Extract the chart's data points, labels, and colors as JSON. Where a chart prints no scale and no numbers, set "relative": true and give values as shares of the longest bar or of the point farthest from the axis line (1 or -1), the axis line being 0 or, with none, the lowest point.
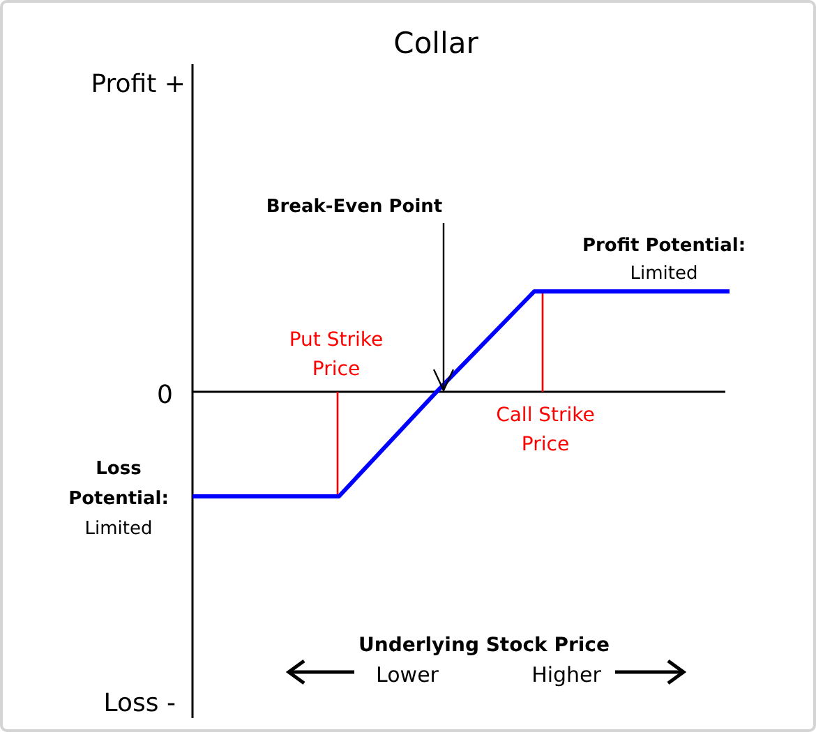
{
  "chart_data": {
    "type": "line",
    "title": "Collar",
    "relative": true,
    "marker": "none",
    "line_style": "solid",
    "categories": [
      null,
      null,
      null,
      null,
      null,
      null,
      null,
      null,
      null,
      null,
      null,
      null
    ],
    "series": [
      {
        "color": "#0000ff",
        "values": [
          -1,
          -1,
          -1,
          -1,
          -0.5,
          0,
          0.48,
          0.96,
          0.96,
          0.96,
          0.96,
          0.96
        ]
      }
    ],
    "annotations": [
      "Profit +",
      "0",
      "Loss -",
      "Break-Even Point",
      "Put Strike\nPrice",
      "Call Strike\nPrice",
      "Profit Potential:\nLimited",
      "Loss\nPotential:\nLimited",
      "Underlying Stock Price",
      "Lower",
      "Higher"
    ]
  }
}
